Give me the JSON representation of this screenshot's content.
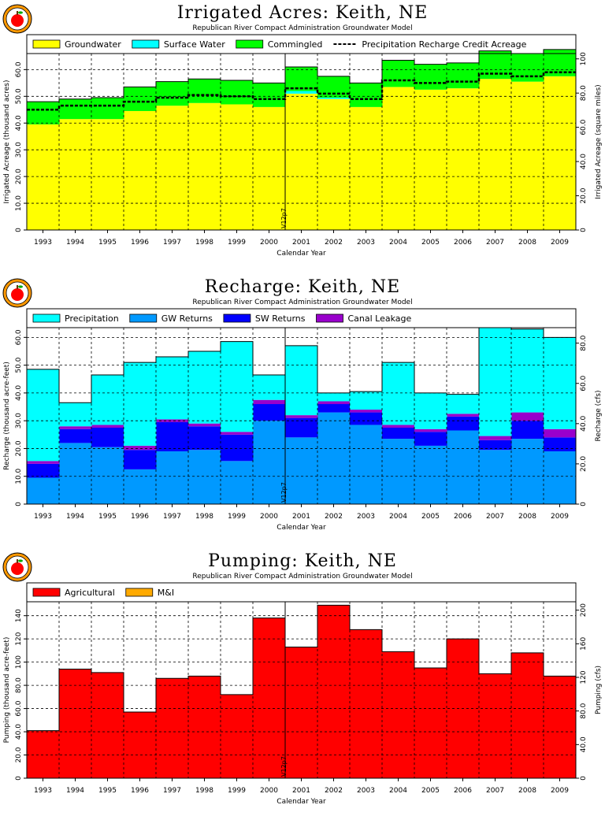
{
  "chart_data": [
    {
      "type": "area",
      "stacked": true,
      "title": "Irrigated Acres: Keith, NE",
      "subtitle": "Republican River Compact Administration Groundwater Model",
      "xlabel": "Calendar Year",
      "ylabel": "Irrigated Acreage (thousand acres)",
      "y2label": "Irrigated Acreage (square miles)",
      "categories": [
        "1993",
        "1994",
        "1995",
        "1996",
        "1997",
        "1998",
        "1999",
        "2000",
        "2001",
        "2002",
        "2003",
        "2004",
        "2005",
        "2006",
        "2007",
        "2008",
        "2009"
      ],
      "ylim": [
        0,
        66
      ],
      "yticks": [
        0,
        10,
        20,
        30,
        40,
        50,
        60
      ],
      "ytick_labels": [
        "0",
        "10.0",
        "20.0",
        "30.0",
        "40.0",
        "50.0",
        "60.0"
      ],
      "y2lim": [
        0,
        103.1
      ],
      "y2ticks": [
        0,
        20,
        40,
        60,
        80,
        100
      ],
      "y2tick_labels": [
        "0",
        "20.0",
        "40.0",
        "60.0",
        "80.0",
        "100"
      ],
      "grid": true,
      "legend_position": "top",
      "series": [
        {
          "name": "Groundwater",
          "color": "#ffff00",
          "values": [
            39.5,
            41.5,
            41.5,
            44.5,
            46.5,
            47.5,
            47.0,
            46.0,
            51.0,
            49.0,
            46.0,
            53.5,
            52.5,
            53.0,
            56.5,
            55.5,
            57.5
          ]
        },
        {
          "name": "Surface Water",
          "color": "#00ffff",
          "values": [
            0,
            0,
            0,
            0,
            0,
            0,
            0,
            0,
            1.0,
            0.5,
            0,
            0,
            0,
            0,
            0,
            0,
            0
          ]
        },
        {
          "name": "Commingled",
          "color": "#00ff00",
          "values": [
            8.5,
            7.5,
            8.0,
            9.0,
            9.0,
            9.0,
            9.0,
            9.0,
            9.0,
            8.0,
            9.0,
            10.0,
            9.5,
            9.5,
            10.5,
            10.5,
            10.0
          ]
        },
        {
          "name": "Precipitation Recharge Credit Acreage",
          "color": "#000000",
          "line": "dashed",
          "values": [
            45.0,
            46.5,
            46.5,
            48.0,
            49.5,
            50.5,
            50.0,
            49.0,
            53.0,
            51.0,
            49.0,
            56.0,
            55.0,
            55.5,
            58.5,
            57.5,
            59.0
          ]
        }
      ],
      "vline": {
        "x": 2000.5,
        "label": "V12p7"
      }
    },
    {
      "type": "area",
      "stacked": true,
      "title": "Recharge: Keith, NE",
      "subtitle": "Republican River Compact Administration Groundwater Model",
      "xlabel": "Calendar Year",
      "ylabel": "Recharge (thousand acre-feet)",
      "y2label": "Recharge (cfs)",
      "categories": [
        "1993",
        "1994",
        "1995",
        "1996",
        "1997",
        "1998",
        "1999",
        "2000",
        "2001",
        "2002",
        "2003",
        "2004",
        "2005",
        "2006",
        "2007",
        "2008",
        "2009"
      ],
      "ylim": [
        0,
        63.5
      ],
      "yticks": [
        0,
        10,
        20,
        30,
        40,
        50,
        60
      ],
      "ytick_labels": [
        "0",
        "10.0",
        "20.0",
        "30.0",
        "40.0",
        "50.0",
        "60.0"
      ],
      "y2lim": [
        0,
        87.7
      ],
      "y2ticks": [
        0,
        20,
        40,
        60,
        80
      ],
      "y2tick_labels": [
        "0",
        "20.0",
        "40.0",
        "60.0",
        "80.0"
      ],
      "grid": true,
      "legend_position": "top",
      "series": [
        {
          "name": "GW Returns",
          "color": "#0099ff",
          "values": [
            9.5,
            22.0,
            20.5,
            12.5,
            19.0,
            19.5,
            15.5,
            30.0,
            24.0,
            33.0,
            28.5,
            23.5,
            21.0,
            26.5,
            19.5,
            23.5,
            19.0
          ]
        },
        {
          "name": "SW Returns",
          "color": "#0000ff",
          "values": [
            5.0,
            5.0,
            7.0,
            7.0,
            10.5,
            8.5,
            9.5,
            6.0,
            7.0,
            3.0,
            4.5,
            4.0,
            5.0,
            5.0,
            3.5,
            6.5,
            5.0
          ]
        },
        {
          "name": "Canal Leakage",
          "color": "#9900cc",
          "values": [
            1.0,
            1.0,
            1.0,
            1.5,
            1.0,
            1.0,
            1.0,
            1.5,
            1.0,
            1.0,
            1.0,
            1.0,
            1.0,
            1.0,
            1.5,
            3.0,
            3.0
          ]
        },
        {
          "name": "Precipitation",
          "color": "#00ffff",
          "values": [
            33.0,
            8.5,
            18.0,
            30.0,
            22.5,
            26.0,
            32.5,
            9.0,
            25.0,
            3.0,
            6.5,
            22.5,
            13.0,
            7.0,
            39.0,
            30.0,
            33.0
          ]
        }
      ],
      "vline": {
        "x": 2000.5,
        "label": "V12p7"
      }
    },
    {
      "type": "area",
      "stacked": true,
      "title": "Pumping: Keith, NE",
      "subtitle": "Republican River Compact Administration Groundwater Model",
      "xlabel": "Calendar Year",
      "ylabel": "Pumping (thousand acre-feet)",
      "y2label": "Pumping (cfs)",
      "categories": [
        "1993",
        "1994",
        "1995",
        "1996",
        "1997",
        "1998",
        "1999",
        "2000",
        "2001",
        "2002",
        "2003",
        "2004",
        "2005",
        "2006",
        "2007",
        "2008",
        "2009"
      ],
      "ylim": [
        0,
        152
      ],
      "yticks": [
        0,
        20,
        40,
        60,
        80,
        100,
        120,
        140
      ],
      "ytick_labels": [
        "0",
        "20.0",
        "40.0",
        "60.0",
        "80.0",
        "100",
        "120",
        "140"
      ],
      "y2lim": [
        0,
        210
      ],
      "y2ticks": [
        0,
        40,
        80,
        120,
        160,
        200
      ],
      "y2tick_labels": [
        "0",
        "40.0",
        "80.0",
        "120",
        "160",
        "200"
      ],
      "grid": true,
      "legend_position": "top",
      "series": [
        {
          "name": "Agricultural",
          "color": "#ff0000",
          "values": [
            41.0,
            94.0,
            91.0,
            57.0,
            86.0,
            88.0,
            72.0,
            138.0,
            113.0,
            149.0,
            128.0,
            109.0,
            95.0,
            120.0,
            90.0,
            108.0,
            88.0
          ]
        },
        {
          "name": "M&I",
          "color": "#ffaa00",
          "values": [
            0,
            0,
            0,
            0,
            0,
            0,
            0,
            0,
            0,
            0,
            0,
            0,
            0,
            0,
            0,
            0,
            0
          ]
        }
      ],
      "vline": {
        "x": 2000.5,
        "label": "V12p7"
      }
    }
  ]
}
